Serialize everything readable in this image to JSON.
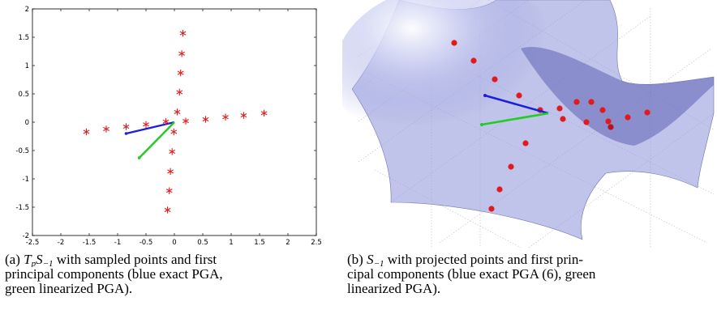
{
  "figure": {
    "panel_a": {
      "chart_data": {
        "type": "scatter",
        "title": "",
        "xlabel": "",
        "ylabel": "",
        "xlim": [
          -2.5,
          2.5
        ],
        "ylim": [
          -2,
          2
        ],
        "grid": false,
        "x_ticks": [
          "-2.5",
          "-2",
          "-1.5",
          "-1",
          "-0.5",
          "0",
          "0.5",
          "1",
          "1.5",
          "2",
          "2.5"
        ],
        "x_tick_values": [
          -2.5,
          -2,
          -1.5,
          -1,
          -0.5,
          0,
          0.5,
          1,
          1.5,
          2,
          2.5
        ],
        "y_ticks": [
          "2",
          "1.5",
          "1",
          "0.5",
          "0",
          "-0.5",
          "-1",
          "-1.5",
          "-2"
        ],
        "y_tick_values": [
          2,
          1.5,
          1,
          0.5,
          0,
          -0.5,
          -1,
          -1.5,
          -2
        ],
        "marker": "*",
        "marker_color": "#e31a1c",
        "points": [
          {
            "x": -1.55,
            "y": -0.17
          },
          {
            "x": -1.2,
            "y": -0.12
          },
          {
            "x": -0.85,
            "y": -0.08
          },
          {
            "x": -0.5,
            "y": -0.04
          },
          {
            "x": -0.15,
            "y": 0.01
          },
          {
            "x": 0.2,
            "y": 0.02
          },
          {
            "x": 0.55,
            "y": 0.05
          },
          {
            "x": 0.9,
            "y": 0.09
          },
          {
            "x": 1.22,
            "y": 0.12
          },
          {
            "x": 1.58,
            "y": 0.16
          },
          {
            "x": 0.15,
            "y": 1.57
          },
          {
            "x": 0.13,
            "y": 1.21
          },
          {
            "x": 0.11,
            "y": 0.87
          },
          {
            "x": 0.09,
            "y": 0.53
          },
          {
            "x": 0.05,
            "y": 0.18
          },
          {
            "x": -0.01,
            "y": -0.17
          },
          {
            "x": -0.04,
            "y": -0.52
          },
          {
            "x": -0.07,
            "y": -0.87
          },
          {
            "x": -0.09,
            "y": -1.21
          },
          {
            "x": -0.12,
            "y": -1.55
          }
        ],
        "vectors": [
          {
            "color": "#1f1fd6",
            "from": [
              0,
              0
            ],
            "to": [
              -0.85,
              -0.2
            ]
          },
          {
            "color": "#22cc22",
            "from": [
              0,
              0
            ],
            "to": [
              -0.62,
              -0.63
            ]
          }
        ]
      }
    },
    "panel_b": {
      "surface_color": "#8a90d8",
      "point_color": "#e31a1c",
      "vectors": [
        {
          "color": "#1f1fd6"
        },
        {
          "color": "#22cc22"
        }
      ]
    }
  },
  "captions": {
    "a": {
      "label": "(a)",
      "math_T": "T",
      "math_p": "p",
      "math_S": "S",
      "math_sub": "−1",
      "line1_rest": "with sampled points and first",
      "line2": "principal components (blue exact PGA,",
      "line3": "green linearized PGA)."
    },
    "b": {
      "label": "(b)",
      "math_S": "S",
      "math_sub": "−1",
      "line1_rest": "with projected points and first prin-",
      "line2": "cipal components (blue exact PGA (6), green",
      "line3": "linearized PGA)."
    }
  }
}
